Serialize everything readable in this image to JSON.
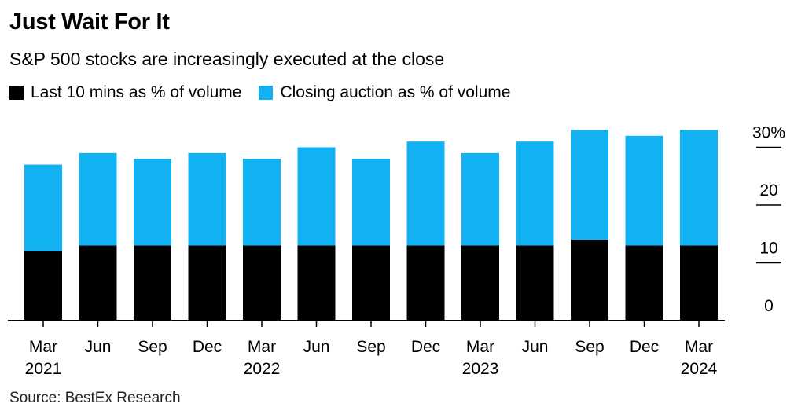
{
  "header": {
    "title": "Just Wait For It",
    "subtitle": "S&P 500 stocks are increasingly executed at the close"
  },
  "legend": [
    {
      "label": "Last 10 mins as % of volume",
      "color": "#000000"
    },
    {
      "label": "Closing auction as % of volume",
      "color": "#12b2f2"
    }
  ],
  "footer": {
    "source": "Source: BestEx Research"
  },
  "chart_data": {
    "type": "bar",
    "stacked": true,
    "title": "Just Wait For It",
    "subtitle": "S&P 500 stocks are increasingly executed at the close",
    "categories": [
      "Mar 2021",
      "Jun",
      "Sep",
      "Dec",
      "Mar 2022",
      "Jun",
      "Sep",
      "Dec",
      "Mar 2023",
      "Jun",
      "Sep",
      "Dec",
      "Mar 2024"
    ],
    "x_tick_labels": [
      {
        "month": "Mar",
        "year": "2021"
      },
      {
        "month": "Jun",
        "year": ""
      },
      {
        "month": "Sep",
        "year": ""
      },
      {
        "month": "Dec",
        "year": ""
      },
      {
        "month": "Mar",
        "year": "2022"
      },
      {
        "month": "Jun",
        "year": ""
      },
      {
        "month": "Sep",
        "year": ""
      },
      {
        "month": "Dec",
        "year": ""
      },
      {
        "month": "Mar",
        "year": "2023"
      },
      {
        "month": "Jun",
        "year": ""
      },
      {
        "month": "Sep",
        "year": ""
      },
      {
        "month": "Dec",
        "year": ""
      },
      {
        "month": "Mar",
        "year": "2024"
      }
    ],
    "series": [
      {
        "name": "Last 10 mins as % of volume",
        "color": "#000000",
        "values": [
          12,
          13,
          13,
          13,
          13,
          13,
          13,
          13,
          13,
          13,
          14,
          13,
          13
        ]
      },
      {
        "name": "Closing auction as % of volume",
        "color": "#12b2f2",
        "values": [
          15,
          16,
          15,
          16,
          15,
          17,
          15,
          18,
          16,
          18,
          19,
          19,
          20
        ]
      }
    ],
    "totals": [
      27,
      29,
      28,
      29,
      28,
      30,
      28,
      31,
      29,
      31,
      33,
      32,
      33
    ],
    "ylim": [
      0,
      33
    ],
    "y_ticks": [
      {
        "value": 0,
        "label": "0"
      },
      {
        "value": 10,
        "label": "10"
      },
      {
        "value": 20,
        "label": "20"
      },
      {
        "value": 30,
        "label": "30%"
      }
    ],
    "y_axis_side": "right",
    "grid": false,
    "legend_position": "top-left"
  }
}
